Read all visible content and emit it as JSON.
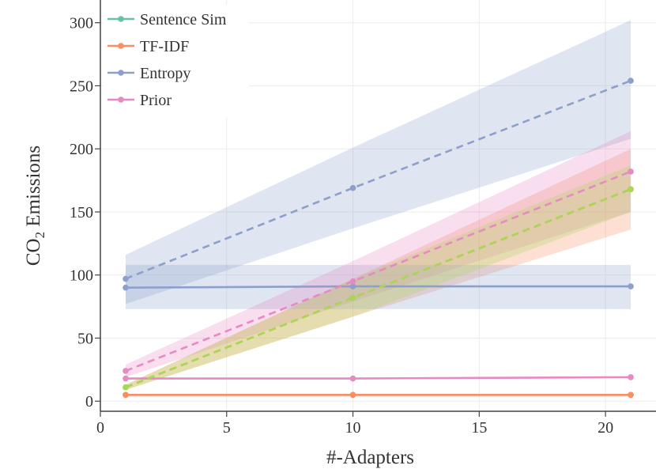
{
  "chart_data": {
    "type": "line",
    "title": "",
    "xlabel": "#-Adapters",
    "ylabel": {
      "prefix": "CO",
      "subscript": "2",
      "suffix": " Emissions"
    },
    "xlim": [
      0,
      22
    ],
    "ylim": [
      -8,
      318
    ],
    "xticks": [
      0,
      5,
      10,
      15,
      20
    ],
    "yticks": [
      0,
      50,
      100,
      150,
      200,
      250,
      300
    ],
    "grid": true,
    "legend_position": "top-left",
    "x": [
      1,
      10,
      21
    ],
    "series": [
      {
        "name": "Sentence Sim",
        "color": "#66c2a5",
        "in_legend": true,
        "solid": {
          "values": [
            5,
            5,
            5
          ],
          "band_low": [
            5,
            5,
            5
          ],
          "band_high": [
            5,
            5,
            5
          ]
        },
        "dashed": null
      },
      {
        "name": "TF-IDF",
        "color": "#fc8d62",
        "in_legend": true,
        "solid": {
          "values": [
            5,
            5,
            5
          ],
          "band_low": [
            5,
            5,
            5
          ],
          "band_high": [
            5,
            5,
            5
          ]
        },
        "dashed": {
          "values": [
            11,
            82,
            168
          ],
          "band_low": [
            9,
            67,
            136
          ],
          "band_high": [
            13,
            97,
            200
          ]
        }
      },
      {
        "name": "Entropy",
        "color": "#8da0cb",
        "in_legend": true,
        "solid": {
          "values": [
            90,
            91,
            91
          ],
          "band_low": [
            73,
            73,
            73
          ],
          "band_high": [
            108,
            108,
            108
          ]
        },
        "dashed": {
          "values": [
            97,
            169,
            254
          ],
          "band_low": [
            77,
            137,
            208
          ],
          "band_high": [
            116,
            201,
            302
          ]
        }
      },
      {
        "name": "Prior",
        "color": "#e78ac3",
        "in_legend": true,
        "solid": {
          "values": [
            18,
            18,
            19
          ],
          "band_low": [
            18,
            18,
            19
          ],
          "band_high": [
            18,
            18,
            19
          ]
        },
        "dashed": {
          "values": [
            24,
            95,
            182
          ],
          "band_low": [
            19,
            79,
            150
          ],
          "band_high": [
            29,
            111,
            214
          ]
        }
      },
      {
        "name": "",
        "color": "#a6d854",
        "in_legend": false,
        "solid": null,
        "dashed": {
          "values": [
            11,
            82,
            168
          ],
          "band_low": [
            9,
            67,
            150
          ],
          "band_high": [
            13,
            97,
            187
          ]
        }
      }
    ]
  }
}
